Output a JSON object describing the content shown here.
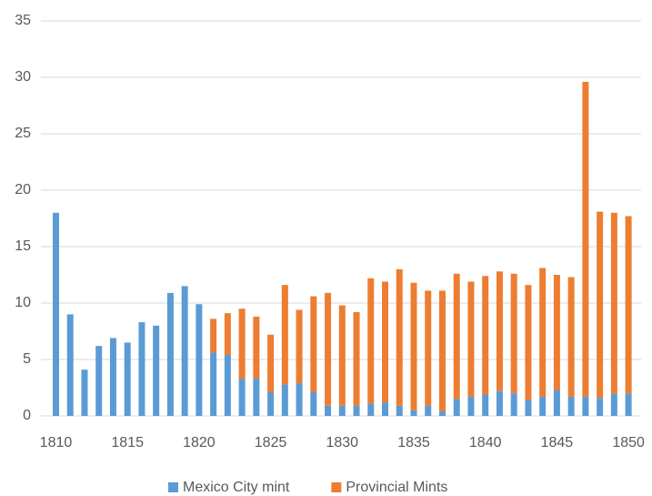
{
  "chart_data": {
    "type": "stacked_bar",
    "x": [
      1810,
      1811,
      1812,
      1813,
      1814,
      1815,
      1816,
      1817,
      1818,
      1819,
      1820,
      1821,
      1822,
      1823,
      1824,
      1825,
      1826,
      1827,
      1828,
      1829,
      1830,
      1831,
      1832,
      1833,
      1834,
      1835,
      1836,
      1837,
      1838,
      1839,
      1840,
      1841,
      1842,
      1843,
      1844,
      1845,
      1846,
      1847,
      1848,
      1849,
      1850
    ],
    "series": [
      {
        "name": "Mexico City mint",
        "color": "#5b9bd5",
        "values": [
          18,
          9,
          4.1,
          6.2,
          6.9,
          6.5,
          8.3,
          8.0,
          10.9,
          11.5,
          9.9,
          5.6,
          5.4,
          3.3,
          3.3,
          2.1,
          2.8,
          2.9,
          2.1,
          0.9,
          0.9,
          0.9,
          1.1,
          1.2,
          0.9,
          0.5,
          0.9,
          0.4,
          1.5,
          1.7,
          1.9,
          2.2,
          2.0,
          1.4,
          1.7,
          2.3,
          1.7,
          1.7,
          1.6,
          2.0,
          2.0
        ]
      },
      {
        "name": "Provincial Mints",
        "color": "#ed7d31",
        "values": [
          0,
          0,
          0,
          0,
          0,
          0,
          0,
          0,
          0,
          0,
          0,
          3.0,
          3.7,
          6.2,
          5.5,
          5.1,
          8.8,
          6.5,
          8.5,
          10.0,
          8.9,
          8.3,
          11.1,
          10.7,
          12.1,
          11.3,
          10.2,
          10.7,
          11.1,
          10.2,
          10.5,
          10.6,
          10.6,
          10.2,
          11.4,
          10.2,
          10.6,
          27.9,
          16.5,
          16.0,
          15.7
        ]
      }
    ],
    "xlim": [
      1808,
      1851.2
    ],
    "xticks": [
      1810,
      1815,
      1820,
      1825,
      1830,
      1835,
      1840,
      1845,
      1850
    ],
    "ylim": [
      0,
      35
    ],
    "yticks": [
      0,
      5,
      10,
      15,
      20,
      25,
      30,
      35
    ],
    "grid": true,
    "legend": "bottom"
  }
}
